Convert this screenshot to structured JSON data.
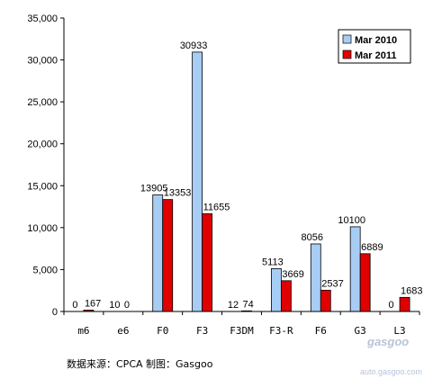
{
  "chart_data": {
    "type": "bar",
    "categories": [
      "m6",
      "e6",
      "F0",
      "F3",
      "F3DM",
      "F3-R",
      "F6",
      "G3",
      "L3"
    ],
    "series": [
      {
        "name": "Mar 2010",
        "color": "#a8cdf5",
        "values": [
          0,
          10,
          13905,
          30933,
          12,
          5113,
          8056,
          10100,
          0
        ]
      },
      {
        "name": "Mar 2011",
        "color": "#e00000",
        "values": [
          167,
          0,
          13353,
          11655,
          74,
          3669,
          2537,
          6889,
          1683
        ]
      }
    ],
    "ylim": [
      0,
      35000
    ],
    "yticks": [
      "0",
      "5,000",
      "10,000",
      "15,000",
      "20,000",
      "25,000",
      "30,000",
      "35,000"
    ],
    "ytick_values": [
      0,
      5000,
      10000,
      15000,
      20000,
      25000,
      30000,
      35000
    ],
    "grid": false,
    "legend_position": "top-right",
    "data_labels": true
  },
  "source_text": "数据来源：CPCA 制图：Gasgoo",
  "watermark": "gasgoo",
  "watermark_url": "auto.gasgoo.com"
}
